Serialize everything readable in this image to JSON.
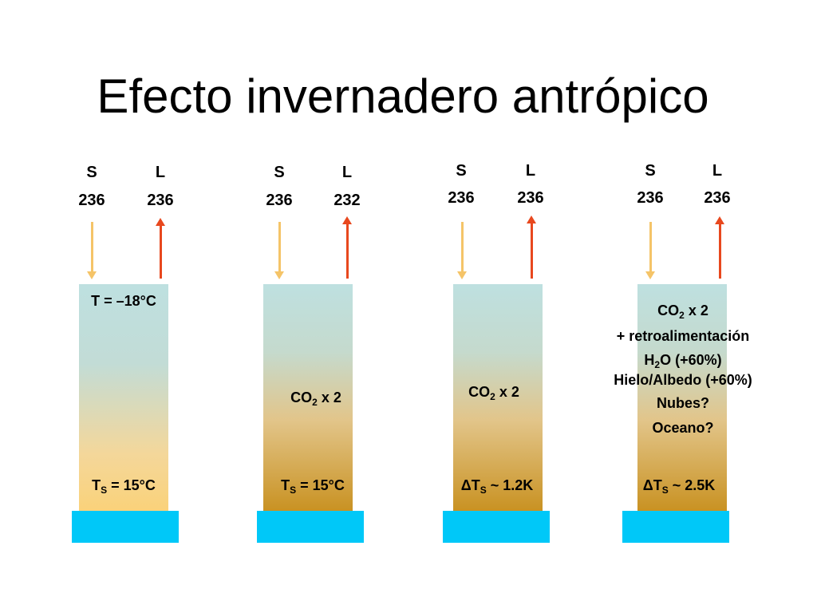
{
  "title": "Efecto invernadero antrópico",
  "colors": {
    "solar_arrow": "#F5C468",
    "longwave_arrow": "#E8481E",
    "ocean_base": "#00C8F8"
  },
  "panels": [
    {
      "s_label": "S",
      "l_label": "L",
      "s_value": "236",
      "l_value": "236",
      "top_text": "T = –18°C",
      "bottom_prefix": "T",
      "bottom_sub": "S",
      "bottom_suffix": " = 15°C"
    },
    {
      "s_label": "S",
      "l_label": "L",
      "s_value": "236",
      "l_value": "232",
      "co2_prefix": "CO",
      "co2_sub": "2",
      "co2_suffix": " x 2",
      "bottom_prefix": "T",
      "bottom_sub": "S",
      "bottom_suffix": " = 15°C"
    },
    {
      "s_label": "S",
      "l_label": "L",
      "s_value": "236",
      "l_value": "236",
      "co2_prefix": "CO",
      "co2_sub": "2",
      "co2_suffix": " x 2",
      "bottom_prefix": "ΔT",
      "bottom_sub": "S",
      "bottom_suffix": " ~ 1.2K"
    },
    {
      "s_label": "S",
      "l_label": "L",
      "s_value": "236",
      "l_value": "236",
      "co2_prefix": "CO",
      "co2_sub": "2",
      "co2_suffix": " x 2",
      "feedback": "+ retroalimentación",
      "h2o_prefix": "H",
      "h2o_sub": "2",
      "h2o_suffix": "O (+60%)",
      "ice": "Hielo/Albedo (+60%)",
      "clouds": "Nubes?",
      "ocean": "Oceano?",
      "bottom_prefix": "ΔT",
      "bottom_sub": "S",
      "bottom_suffix": " ~ 2.5K"
    }
  ]
}
